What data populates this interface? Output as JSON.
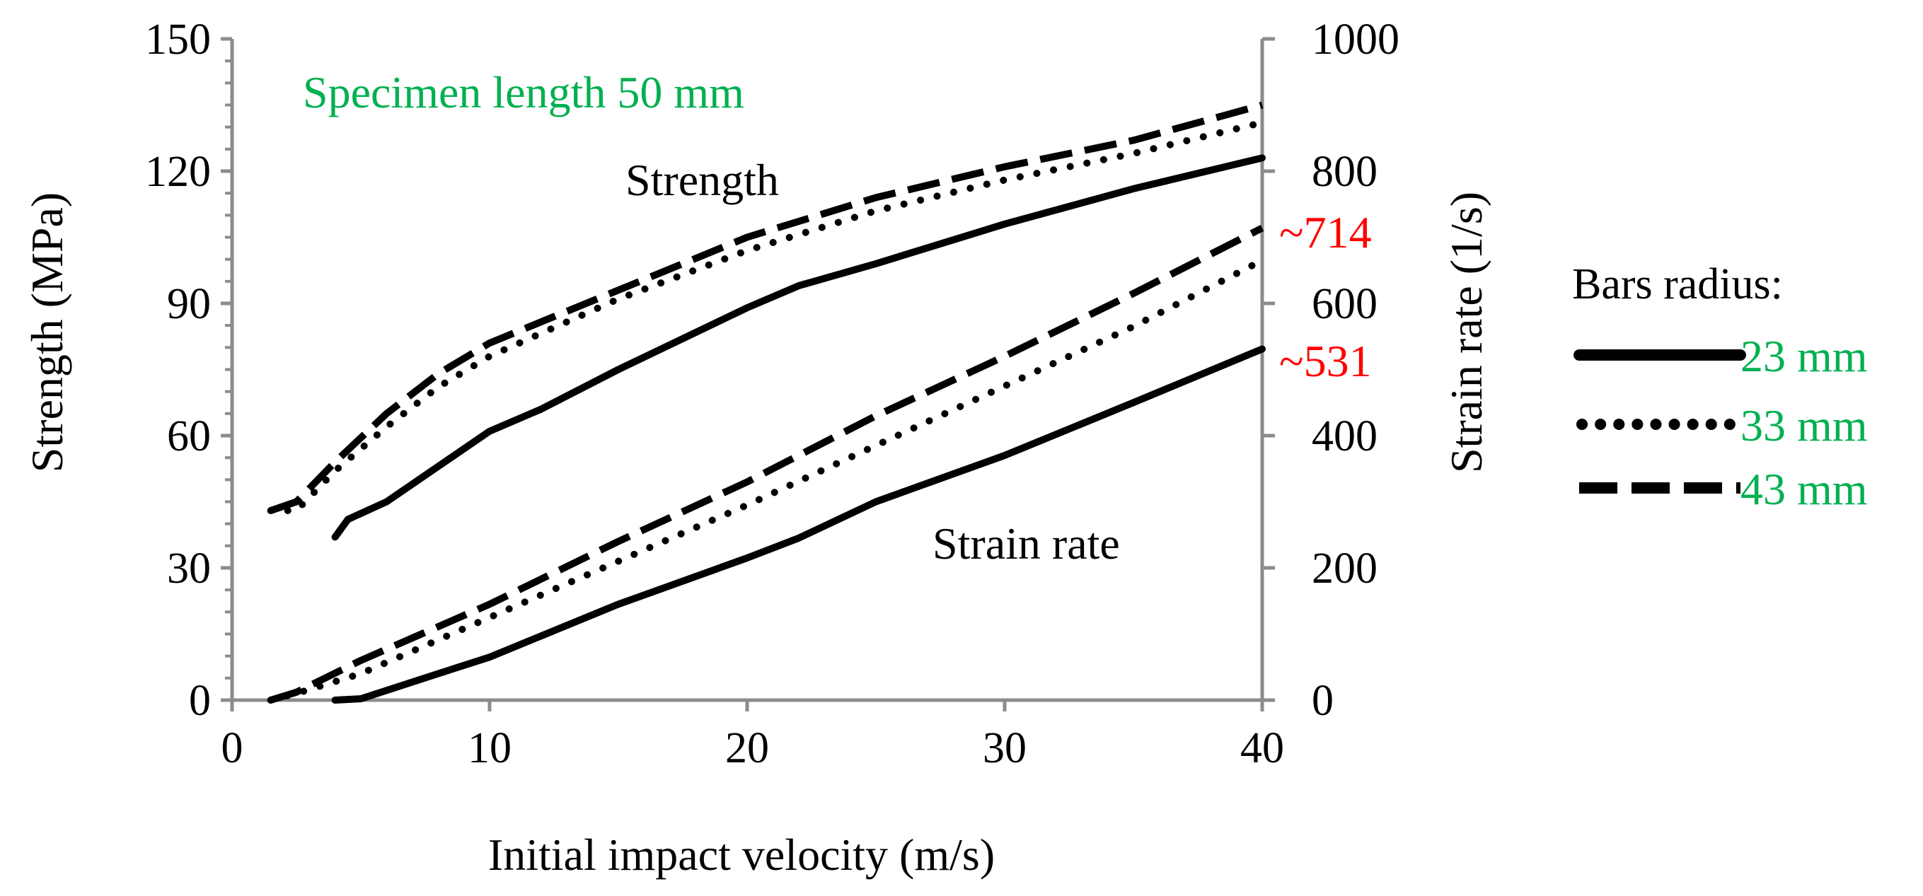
{
  "chart_data": {
    "type": "line",
    "title": "Specimen length 50 mm",
    "xlabel": "Initial impact velocity (m/s)",
    "ylabel_left": "Strength (MPa)",
    "ylabel_right": "Strain rate (1/s)",
    "xlim": [
      0,
      40
    ],
    "ylim_left": [
      0,
      150
    ],
    "ylim_right": [
      0,
      1000
    ],
    "x_ticks": [
      "0",
      "10",
      "20",
      "30",
      "40"
    ],
    "y_ticks_left": [
      "0",
      "30",
      "60",
      "90",
      "120",
      "150"
    ],
    "y_ticks_right": [
      "0",
      "200",
      "400",
      "600",
      "800",
      "1000"
    ],
    "group_labels": {
      "strength": "Strength",
      "strain_rate": "Strain rate"
    },
    "annotations": [
      {
        "text": "~714",
        "color": "#ff0000"
      },
      {
        "text": "~531",
        "color": "#ff0000"
      }
    ],
    "legend": {
      "title": "Bars radius:",
      "label_color": "#00b050"
    },
    "title_color": "#00b050",
    "series": [
      {
        "name": "23 mm",
        "quantity": "Strength",
        "axis": "left",
        "style": "solid",
        "x": [
          4,
          4.5,
          6,
          8,
          10,
          12,
          15,
          20,
          22,
          25,
          30,
          35,
          40
        ],
        "y": [
          37,
          41,
          45,
          53,
          61,
          66,
          75,
          89,
          94,
          99,
          108,
          116,
          123
        ]
      },
      {
        "name": "33 mm",
        "quantity": "Strength",
        "axis": "left",
        "style": "dotted",
        "x": [
          1.5,
          2.5,
          4,
          6,
          8,
          10,
          15,
          20,
          25,
          30,
          35,
          40
        ],
        "y": [
          43,
          43,
          52,
          62,
          71,
          78,
          91,
          102,
          111,
          118,
          124,
          131
        ]
      },
      {
        "name": "43 mm",
        "quantity": "Strength",
        "axis": "left",
        "style": "dashed",
        "x": [
          1.5,
          2.5,
          4,
          6,
          8,
          10,
          15,
          20,
          25,
          30,
          35,
          40
        ],
        "y": [
          43,
          45,
          54,
          65,
          74,
          81,
          93,
          105,
          114,
          121,
          127,
          135
        ]
      },
      {
        "name": "23 mm",
        "quantity": "Strain rate",
        "axis": "right",
        "style": "solid",
        "x": [
          4,
          5,
          8,
          10,
          15,
          20,
          22,
          25,
          30,
          35,
          40
        ],
        "y": [
          0,
          2,
          40,
          65,
          145,
          215,
          245,
          300,
          370,
          450,
          531
        ]
      },
      {
        "name": "33 mm",
        "quantity": "Strain rate",
        "axis": "right",
        "style": "dotted",
        "x": [
          1.5,
          2.5,
          5,
          10,
          15,
          20,
          25,
          30,
          35,
          40
        ],
        "y": [
          0,
          10,
          40,
          125,
          210,
          295,
          385,
          475,
          565,
          665
        ]
      },
      {
        "name": "43 mm",
        "quantity": "Strain rate",
        "axis": "right",
        "style": "dashed",
        "x": [
          1.5,
          2.5,
          5,
          10,
          15,
          20,
          25,
          30,
          35,
          40
        ],
        "y": [
          0,
          12,
          60,
          145,
          240,
          330,
          430,
          520,
          615,
          714
        ]
      }
    ]
  }
}
